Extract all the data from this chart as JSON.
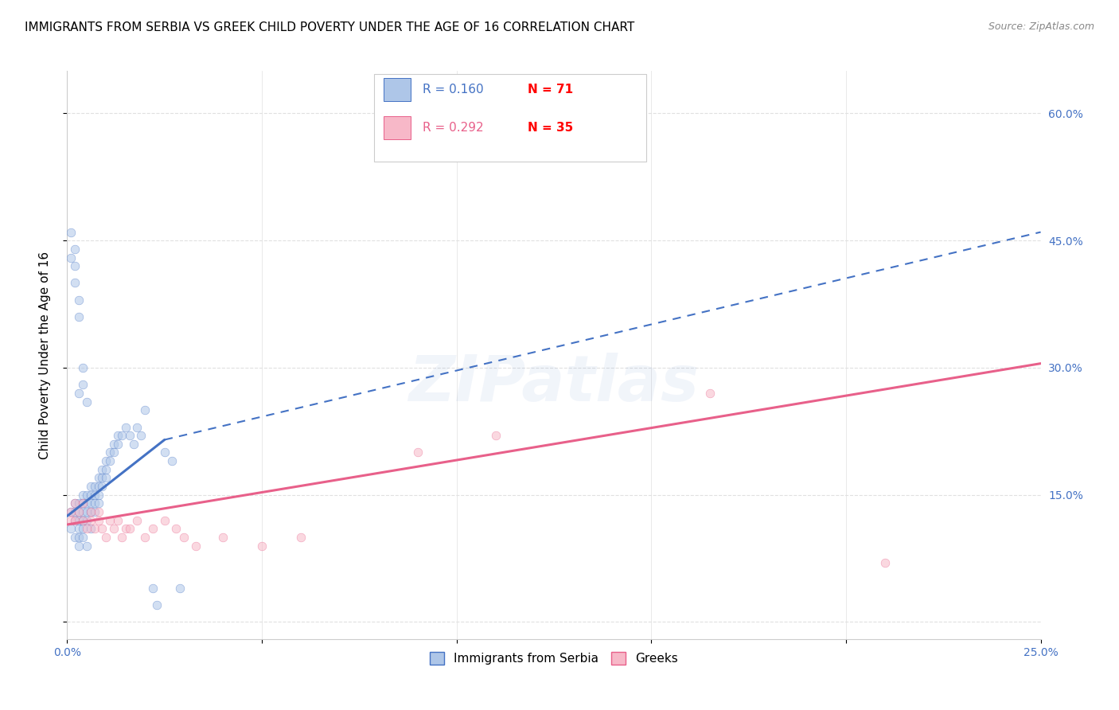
{
  "title": "IMMIGRANTS FROM SERBIA VS GREEK CHILD POVERTY UNDER THE AGE OF 16 CORRELATION CHART",
  "source": "Source: ZipAtlas.com",
  "ylabel": "Child Poverty Under the Age of 16",
  "watermark": "ZIPatlas",
  "xlim": [
    0.0,
    0.25
  ],
  "ylim": [
    -0.02,
    0.65
  ],
  "xtick_vals": [
    0.0,
    0.05,
    0.1,
    0.15,
    0.2,
    0.25
  ],
  "xtick_labels": [
    "0.0%",
    "",
    "",
    "",
    "",
    "25.0%"
  ],
  "ytick_vals": [
    0.0,
    0.15,
    0.3,
    0.45,
    0.6
  ],
  "ytick_labels_right": [
    "",
    "15.0%",
    "30.0%",
    "45.0%",
    "60.0%"
  ],
  "legend_R1": "R = 0.160",
  "legend_N1": "N = 71",
  "legend_R2": "R = 0.292",
  "legend_N2": "N = 35",
  "legend_series1_label": "Immigrants from Serbia",
  "legend_series2_label": "Greeks",
  "series1_color": "#aec6e8",
  "series2_color": "#f7b8c8",
  "line1_color": "#4472c4",
  "line2_color": "#e8608a",
  "R1_color": "#4472c4",
  "N1_color": "#ff0000",
  "R2_color": "#e8608a",
  "N2_color": "#ff0000",
  "background_color": "#ffffff",
  "grid_color": "#e0e0e0",
  "title_fontsize": 11,
  "source_fontsize": 9,
  "axis_label_fontsize": 11,
  "tick_fontsize": 10,
  "right_tick_color": "#4472c4",
  "scatter_size": 60,
  "scatter_alpha": 0.55,
  "scatter1_x": [
    0.001,
    0.001,
    0.002,
    0.002,
    0.002,
    0.002,
    0.003,
    0.003,
    0.003,
    0.003,
    0.003,
    0.003,
    0.004,
    0.004,
    0.004,
    0.004,
    0.004,
    0.004,
    0.005,
    0.005,
    0.005,
    0.005,
    0.005,
    0.006,
    0.006,
    0.006,
    0.006,
    0.006,
    0.007,
    0.007,
    0.007,
    0.007,
    0.008,
    0.008,
    0.008,
    0.008,
    0.009,
    0.009,
    0.009,
    0.01,
    0.01,
    0.01,
    0.011,
    0.011,
    0.012,
    0.012,
    0.013,
    0.013,
    0.014,
    0.015,
    0.016,
    0.017,
    0.018,
    0.019,
    0.02,
    0.022,
    0.023,
    0.025,
    0.027,
    0.029,
    0.001,
    0.001,
    0.002,
    0.002,
    0.002,
    0.003,
    0.003,
    0.003,
    0.004,
    0.004,
    0.005
  ],
  "scatter1_y": [
    0.13,
    0.11,
    0.14,
    0.13,
    0.12,
    0.1,
    0.14,
    0.13,
    0.12,
    0.11,
    0.1,
    0.09,
    0.15,
    0.14,
    0.13,
    0.12,
    0.11,
    0.1,
    0.15,
    0.14,
    0.13,
    0.12,
    0.09,
    0.16,
    0.15,
    0.14,
    0.13,
    0.11,
    0.16,
    0.15,
    0.14,
    0.13,
    0.17,
    0.16,
    0.15,
    0.14,
    0.18,
    0.17,
    0.16,
    0.19,
    0.18,
    0.17,
    0.2,
    0.19,
    0.21,
    0.2,
    0.22,
    0.21,
    0.22,
    0.23,
    0.22,
    0.21,
    0.23,
    0.22,
    0.25,
    0.04,
    0.02,
    0.2,
    0.19,
    0.04,
    0.43,
    0.46,
    0.44,
    0.42,
    0.4,
    0.38,
    0.36,
    0.27,
    0.28,
    0.3,
    0.26
  ],
  "scatter2_x": [
    0.001,
    0.001,
    0.002,
    0.002,
    0.003,
    0.004,
    0.004,
    0.005,
    0.006,
    0.006,
    0.007,
    0.008,
    0.008,
    0.009,
    0.01,
    0.011,
    0.012,
    0.013,
    0.014,
    0.015,
    0.016,
    0.018,
    0.02,
    0.022,
    0.025,
    0.028,
    0.03,
    0.033,
    0.04,
    0.05,
    0.06,
    0.09,
    0.11,
    0.165,
    0.21
  ],
  "scatter2_y": [
    0.13,
    0.12,
    0.14,
    0.12,
    0.13,
    0.14,
    0.12,
    0.11,
    0.13,
    0.12,
    0.11,
    0.13,
    0.12,
    0.11,
    0.1,
    0.12,
    0.11,
    0.12,
    0.1,
    0.11,
    0.11,
    0.12,
    0.1,
    0.11,
    0.12,
    0.11,
    0.1,
    0.09,
    0.1,
    0.09,
    0.1,
    0.2,
    0.22,
    0.27,
    0.07
  ],
  "line1_x0": 0.0,
  "line1_x1": 0.025,
  "line1_y0": 0.125,
  "line1_y1": 0.215,
  "line1_dash_x1": 0.25,
  "line1_dash_y1": 0.46,
  "line2_x0": 0.0,
  "line2_x1": 0.25,
  "line2_y0": 0.115,
  "line2_y1": 0.305
}
